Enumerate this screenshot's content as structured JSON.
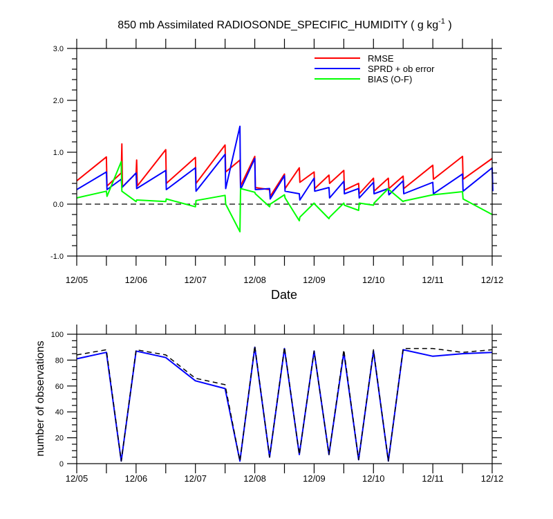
{
  "figure": {
    "title_main": "850 mb Assimilated RADIOSONDE_SPECIFIC_HUMIDITY ( g kg",
    "title_sup": "-1",
    "title_end": " )"
  },
  "chart_data": [
    {
      "type": "line",
      "title": "850 mb Assimilated RADIOSONDE_SPECIFIC_HUMIDITY ( g kg-1 )",
      "xlabel": "Date",
      "ylabel": "",
      "xlim": [
        0,
        7
      ],
      "ylim": [
        -1.0,
        3.0
      ],
      "x_tick_labels": [
        "12/05",
        "12/06",
        "12/07",
        "12/08",
        "12/09",
        "12/10",
        "12/11",
        "12/12"
      ],
      "y_tick_labels": [
        "3.0",
        "2.0",
        "1.0",
        "0.0",
        "-1.0"
      ],
      "legend_position": "top-right",
      "grid": false,
      "zero_line": "dashed",
      "series": [
        {
          "name": "RMSE",
          "color": "#ff0000",
          "points": [
            [
              0,
              0.45
            ],
            [
              0.5,
              0.91
            ],
            [
              0.51,
              0.35
            ],
            [
              0.75,
              0.6
            ],
            [
              0.76,
              1.16
            ],
            [
              0.77,
              0.33
            ],
            [
              1.0,
              0.6
            ],
            [
              1.01,
              0.85
            ],
            [
              1.02,
              0.35
            ],
            [
              1.5,
              1.05
            ],
            [
              1.51,
              0.4
            ],
            [
              2.0,
              0.9
            ],
            [
              2.01,
              0.4
            ],
            [
              2.5,
              1.14
            ],
            [
              2.51,
              0.62
            ],
            [
              2.75,
              0.85
            ],
            [
              2.76,
              0.35
            ],
            [
              3.0,
              0.92
            ],
            [
              3.01,
              0.32
            ],
            [
              3.25,
              0.28
            ],
            [
              3.26,
              0.15
            ],
            [
              3.5,
              0.58
            ],
            [
              3.51,
              0.3
            ],
            [
              3.75,
              0.7
            ],
            [
              3.76,
              0.42
            ],
            [
              4.0,
              0.62
            ],
            [
              4.01,
              0.3
            ],
            [
              4.25,
              0.56
            ],
            [
              4.26,
              0.4
            ],
            [
              4.5,
              0.65
            ],
            [
              4.51,
              0.27
            ],
            [
              4.75,
              0.4
            ],
            [
              4.76,
              0.2
            ],
            [
              5.0,
              0.5
            ],
            [
              5.01,
              0.25
            ],
            [
              5.25,
              0.5
            ],
            [
              5.26,
              0.3
            ],
            [
              5.5,
              0.54
            ],
            [
              5.51,
              0.3
            ],
            [
              6.0,
              0.75
            ],
            [
              6.01,
              0.48
            ],
            [
              6.5,
              0.92
            ],
            [
              6.51,
              0.48
            ],
            [
              7.0,
              0.88
            ]
          ]
        },
        {
          "name": "SPRD + ob error",
          "color": "#0000ff",
          "points": [
            [
              0,
              0.28
            ],
            [
              0.5,
              0.62
            ],
            [
              0.51,
              0.28
            ],
            [
              0.75,
              0.48
            ],
            [
              0.76,
              0.32
            ],
            [
              1.0,
              0.6
            ],
            [
              1.01,
              0.3
            ],
            [
              1.5,
              0.65
            ],
            [
              1.51,
              0.28
            ],
            [
              2.0,
              0.7
            ],
            [
              2.01,
              0.25
            ],
            [
              2.5,
              0.96
            ],
            [
              2.51,
              0.3
            ],
            [
              2.75,
              1.5
            ],
            [
              2.76,
              0.28
            ],
            [
              3.0,
              0.88
            ],
            [
              3.01,
              0.28
            ],
            [
              3.25,
              0.3
            ],
            [
              3.26,
              0.1
            ],
            [
              3.5,
              0.55
            ],
            [
              3.51,
              0.25
            ],
            [
              3.75,
              0.2
            ],
            [
              3.76,
              0.08
            ],
            [
              4.0,
              0.5
            ],
            [
              4.01,
              0.25
            ],
            [
              4.25,
              0.32
            ],
            [
              4.26,
              0.12
            ],
            [
              4.5,
              0.44
            ],
            [
              4.51,
              0.2
            ],
            [
              4.75,
              0.3
            ],
            [
              4.76,
              0.12
            ],
            [
              5.0,
              0.42
            ],
            [
              5.01,
              0.2
            ],
            [
              5.25,
              0.3
            ],
            [
              5.26,
              0.18
            ],
            [
              5.5,
              0.45
            ],
            [
              5.51,
              0.2
            ],
            [
              6.0,
              0.42
            ],
            [
              6.01,
              0.2
            ],
            [
              6.5,
              0.58
            ],
            [
              6.51,
              0.25
            ],
            [
              7.0,
              0.7
            ],
            [
              7.01,
              0.25
            ]
          ]
        },
        {
          "name": "BIAS (O-F)",
          "color": "#00ff00",
          "points": [
            [
              0,
              0.12
            ],
            [
              0.5,
              0.25
            ],
            [
              0.51,
              0.15
            ],
            [
              0.75,
              0.82
            ],
            [
              0.76,
              0.25
            ],
            [
              1.0,
              0.05
            ],
            [
              1.01,
              0.08
            ],
            [
              1.5,
              0.05
            ],
            [
              1.51,
              0.1
            ],
            [
              2.0,
              -0.05
            ],
            [
              2.01,
              0.07
            ],
            [
              2.5,
              0.17
            ],
            [
              2.51,
              0.0
            ],
            [
              2.75,
              -0.53
            ],
            [
              2.76,
              0.3
            ],
            [
              3.0,
              0.23
            ],
            [
              3.01,
              0.2
            ],
            [
              3.25,
              -0.05
            ],
            [
              3.26,
              0.0
            ],
            [
              3.5,
              0.18
            ],
            [
              3.51,
              0.12
            ],
            [
              3.75,
              -0.32
            ],
            [
              3.76,
              -0.25
            ],
            [
              4.0,
              0.02
            ],
            [
              4.01,
              0.0
            ],
            [
              4.25,
              -0.28
            ],
            [
              4.26,
              -0.25
            ],
            [
              4.5,
              0.02
            ],
            [
              4.51,
              -0.02
            ],
            [
              4.75,
              -0.12
            ],
            [
              4.76,
              0.02
            ],
            [
              5.0,
              -0.02
            ],
            [
              5.01,
              0.02
            ],
            [
              5.25,
              0.3
            ],
            [
              5.26,
              0.28
            ],
            [
              5.5,
              0.05
            ],
            [
              5.51,
              0.06
            ],
            [
              6.0,
              0.18
            ],
            [
              6.5,
              0.24
            ],
            [
              6.51,
              0.1
            ],
            [
              7.0,
              -0.2
            ]
          ]
        }
      ]
    },
    {
      "type": "line",
      "title": "",
      "xlabel": "",
      "ylabel": "number of observations",
      "xlim": [
        0,
        7
      ],
      "ylim": [
        0,
        100
      ],
      "x_tick_labels": [
        "12/05",
        "12/06",
        "12/07",
        "12/08",
        "12/09",
        "12/10",
        "12/11",
        "12/12"
      ],
      "y_tick_labels": [
        "100",
        "80",
        "60",
        "40",
        "20",
        "0"
      ],
      "grid": false,
      "series": [
        {
          "name": "",
          "color": "#0000ff",
          "style": "solid",
          "points": [
            [
              0,
              81
            ],
            [
              0.5,
              86
            ],
            [
              0.75,
              2
            ],
            [
              1.0,
              87
            ],
            [
              1.5,
              82
            ],
            [
              2.0,
              64
            ],
            [
              2.5,
              58
            ],
            [
              2.75,
              2
            ],
            [
              3.0,
              90
            ],
            [
              3.25,
              5
            ],
            [
              3.5,
              89
            ],
            [
              3.75,
              7
            ],
            [
              4.0,
              87
            ],
            [
              4.25,
              7
            ],
            [
              4.5,
              86
            ],
            [
              4.75,
              3
            ],
            [
              5.0,
              87
            ],
            [
              5.25,
              2
            ],
            [
              5.5,
              88
            ],
            [
              6.0,
              83
            ],
            [
              6.5,
              85
            ],
            [
              7.0,
              86
            ]
          ]
        },
        {
          "name": "",
          "color": "#000000",
          "style": "dashed",
          "points": [
            [
              0,
              84
            ],
            [
              0.5,
              88
            ],
            [
              0.75,
              2
            ],
            [
              1.0,
              88
            ],
            [
              1.5,
              84
            ],
            [
              2.0,
              66
            ],
            [
              2.5,
              61
            ],
            [
              2.75,
              2
            ],
            [
              3.0,
              91
            ],
            [
              3.25,
              5
            ],
            [
              3.5,
              90
            ],
            [
              3.75,
              7
            ],
            [
              4.0,
              87
            ],
            [
              4.25,
              7
            ],
            [
              4.5,
              88
            ],
            [
              4.75,
              3
            ],
            [
              5.0,
              88
            ],
            [
              5.25,
              2
            ],
            [
              5.5,
              89
            ],
            [
              6.0,
              89
            ],
            [
              6.5,
              86
            ],
            [
              7.0,
              88
            ]
          ]
        }
      ]
    }
  ]
}
